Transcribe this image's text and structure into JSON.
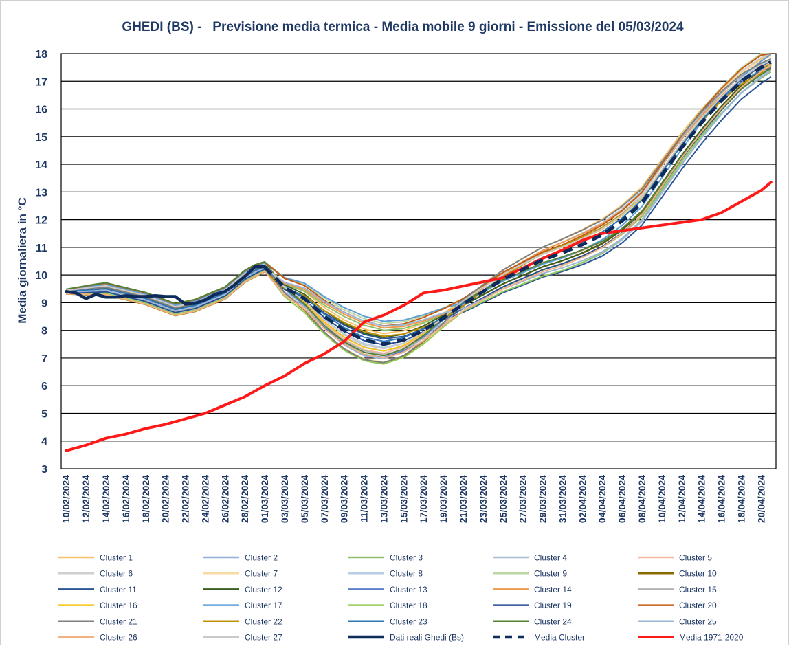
{
  "chart_data": {
    "type": "line",
    "title": "GHEDI (BS) -   Previsione media termica - Media mobile 9 giorni - Emissione del 05/03/2024",
    "xlabel": "",
    "ylabel": "Media giornaliera in °C",
    "ylim": [
      3,
      18
    ],
    "yticks": [
      3,
      4,
      5,
      6,
      7,
      8,
      9,
      10,
      11,
      12,
      13,
      14,
      15,
      16,
      17,
      18
    ],
    "grid": true,
    "legend_position": "bottom",
    "x_start": "2024-02-10",
    "x_end": "2024-04-21",
    "x_tick_labels": [
      "10/02/2024",
      "12/02/2024",
      "14/02/2024",
      "16/02/2024",
      "18/02/2024",
      "20/02/2024",
      "22/02/2024",
      "24/02/2024",
      "26/02/2024",
      "28/02/2024",
      "01/03/2024",
      "03/03/2024",
      "05/03/2024",
      "07/03/2024",
      "09/03/2024",
      "11/03/2024",
      "13/03/2024",
      "15/03/2024",
      "17/03/2024",
      "19/03/2024",
      "21/03/2024",
      "23/03/2024",
      "25/03/2024",
      "27/03/2024",
      "29/03/2024",
      "31/03/2024",
      "02/04/2024",
      "04/04/2024",
      "06/04/2024",
      "08/04/2024",
      "10/04/2024",
      "12/04/2024",
      "14/04/2024",
      "16/04/2024",
      "18/04/2024",
      "20/04/2024"
    ],
    "series": [
      {
        "name": "Cluster 1",
        "color": "#f6c36a",
        "kind": "cluster"
      },
      {
        "name": "Cluster 2",
        "color": "#8fb0d8",
        "kind": "cluster"
      },
      {
        "name": "Cluster 3",
        "color": "#8cbf6e",
        "kind": "cluster"
      },
      {
        "name": "Cluster 4",
        "color": "#a9bcd2",
        "kind": "cluster"
      },
      {
        "name": "Cluster 5",
        "color": "#f2b8a0",
        "kind": "cluster"
      },
      {
        "name": "Cluster 6",
        "color": "#cfcfcf",
        "kind": "cluster"
      },
      {
        "name": "Cluster 7",
        "color": "#f8dba0",
        "kind": "cluster"
      },
      {
        "name": "Cluster 8",
        "color": "#b8cde6",
        "kind": "cluster"
      },
      {
        "name": "Cluster 9",
        "color": "#bcd7a6",
        "kind": "cluster"
      },
      {
        "name": "Cluster 10",
        "color": "#8a6a00",
        "kind": "cluster"
      },
      {
        "name": "Cluster 11",
        "color": "#2a5597",
        "kind": "cluster"
      },
      {
        "name": "Cluster 12",
        "color": "#3a5e20",
        "kind": "cluster"
      },
      {
        "name": "Cluster 13",
        "color": "#5b7fc4",
        "kind": "cluster"
      },
      {
        "name": "Cluster 14",
        "color": "#ed9a4c",
        "kind": "cluster"
      },
      {
        "name": "Cluster 15",
        "color": "#b3b3b3",
        "kind": "cluster"
      },
      {
        "name": "Cluster 16",
        "color": "#f5c518",
        "kind": "cluster"
      },
      {
        "name": "Cluster 17",
        "color": "#5e9fd8",
        "kind": "cluster"
      },
      {
        "name": "Cluster 18",
        "color": "#92cd54",
        "kind": "cluster"
      },
      {
        "name": "Cluster 19",
        "color": "#274f94",
        "kind": "cluster"
      },
      {
        "name": "Cluster 20",
        "color": "#c55a11",
        "kind": "cluster"
      },
      {
        "name": "Cluster 21",
        "color": "#7f7f7f",
        "kind": "cluster"
      },
      {
        "name": "Cluster 22",
        "color": "#bf9000",
        "kind": "cluster"
      },
      {
        "name": "Cluster 23",
        "color": "#2f75b5",
        "kind": "cluster"
      },
      {
        "name": "Cluster 24",
        "color": "#548235",
        "kind": "cluster"
      },
      {
        "name": "Cluster 25",
        "color": "#9ab5d6",
        "kind": "cluster"
      },
      {
        "name": "Cluster 26",
        "color": "#f4b183",
        "kind": "cluster"
      },
      {
        "name": "Cluster 27",
        "color": "#c9c9c9",
        "kind": "cluster"
      },
      {
        "name": "Dati reali Ghedi (Bs)",
        "color": "#0e2b5c",
        "kind": "observed",
        "x": [
          "2024-02-10",
          "2024-02-11",
          "2024-02-12",
          "2024-02-13",
          "2024-02-14",
          "2024-02-15",
          "2024-02-16",
          "2024-02-17",
          "2024-02-18",
          "2024-02-19",
          "2024-02-20",
          "2024-02-21",
          "2024-02-22",
          "2024-02-23",
          "2024-02-24",
          "2024-02-25",
          "2024-02-26",
          "2024-02-27",
          "2024-02-28",
          "2024-02-29",
          "2024-03-01"
        ],
        "y": [
          9.4,
          9.35,
          9.15,
          9.3,
          9.2,
          9.2,
          9.25,
          9.22,
          9.22,
          9.25,
          9.22,
          9.22,
          8.95,
          8.98,
          9.1,
          9.3,
          9.4,
          9.65,
          9.95,
          10.3,
          10.3
        ]
      },
      {
        "name": "Media Cluster",
        "color": "#0e2b5c",
        "kind": "mean",
        "x": [
          "2024-03-01",
          "2024-03-03",
          "2024-03-05",
          "2024-03-07",
          "2024-03-09",
          "2024-03-11",
          "2024-03-13",
          "2024-03-15",
          "2024-03-17",
          "2024-03-19",
          "2024-03-21",
          "2024-03-23",
          "2024-03-25",
          "2024-03-27",
          "2024-03-29",
          "2024-03-31",
          "2024-04-02",
          "2024-04-04",
          "2024-04-06",
          "2024-04-08",
          "2024-04-10",
          "2024-04-12",
          "2024-04-14",
          "2024-04-16",
          "2024-04-18",
          "2024-04-20",
          "2024-04-21"
        ],
        "y": [
          10.3,
          9.55,
          9.15,
          8.5,
          8.0,
          7.65,
          7.5,
          7.65,
          8.0,
          8.45,
          8.95,
          9.4,
          9.85,
          10.2,
          10.55,
          10.8,
          11.1,
          11.45,
          11.95,
          12.6,
          13.6,
          14.6,
          15.5,
          16.3,
          17.0,
          17.5,
          17.7
        ]
      },
      {
        "name": "Media 1971-2020",
        "color": "#ff1a1a",
        "kind": "climate",
        "x": [
          "2024-02-10",
          "2024-02-12",
          "2024-02-14",
          "2024-02-16",
          "2024-02-18",
          "2024-02-20",
          "2024-02-22",
          "2024-02-24",
          "2024-02-26",
          "2024-02-28",
          "2024-03-01",
          "2024-03-03",
          "2024-03-05",
          "2024-03-07",
          "2024-03-09",
          "2024-03-11",
          "2024-03-13",
          "2024-03-15",
          "2024-03-17",
          "2024-03-19",
          "2024-03-21",
          "2024-03-23",
          "2024-03-25",
          "2024-03-27",
          "2024-03-29",
          "2024-03-31",
          "2024-04-02",
          "2024-04-04",
          "2024-04-06",
          "2024-04-08",
          "2024-04-10",
          "2024-04-12",
          "2024-04-14",
          "2024-04-16",
          "2024-04-18",
          "2024-04-20",
          "2024-04-21"
        ],
        "y": [
          3.65,
          3.85,
          4.1,
          4.25,
          4.45,
          4.6,
          4.8,
          5.0,
          5.3,
          5.6,
          6.0,
          6.35,
          6.8,
          7.15,
          7.6,
          8.3,
          8.55,
          8.9,
          9.35,
          9.45,
          9.6,
          9.75,
          9.9,
          10.25,
          10.6,
          10.9,
          11.25,
          11.5,
          11.6,
          11.7,
          11.8,
          11.9,
          12.0,
          12.25,
          12.65,
          13.05,
          13.35
        ]
      }
    ]
  }
}
